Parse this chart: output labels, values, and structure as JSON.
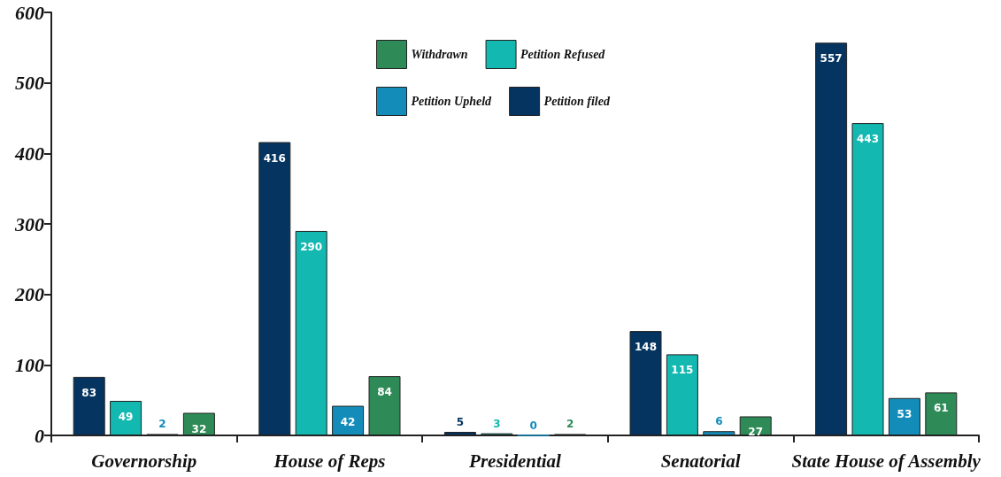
{
  "chart_data": {
    "type": "bar",
    "categories": [
      "Governorship",
      "House of Reps",
      "Presidential",
      "Senatorial",
      "State House of Assembly"
    ],
    "series": [
      {
        "name": "Petition filed",
        "color": "#04345f",
        "values": [
          83,
          416,
          5,
          148,
          557
        ]
      },
      {
        "name": "Petition Refused",
        "color": "#13b8b0",
        "values": [
          49,
          290,
          3,
          115,
          443
        ]
      },
      {
        "name": "Petition Upheld",
        "color": "#138cba",
        "values": [
          2,
          42,
          0,
          6,
          53
        ]
      },
      {
        "name": "Withdrawn",
        "color": "#2e8b57",
        "values": [
          32,
          84,
          2,
          27,
          61
        ]
      }
    ],
    "ylim": [
      0,
      600
    ],
    "yticks": [
      0,
      100,
      200,
      300,
      400,
      500,
      600
    ],
    "grid": false,
    "legend": "top",
    "data_labels": true
  }
}
